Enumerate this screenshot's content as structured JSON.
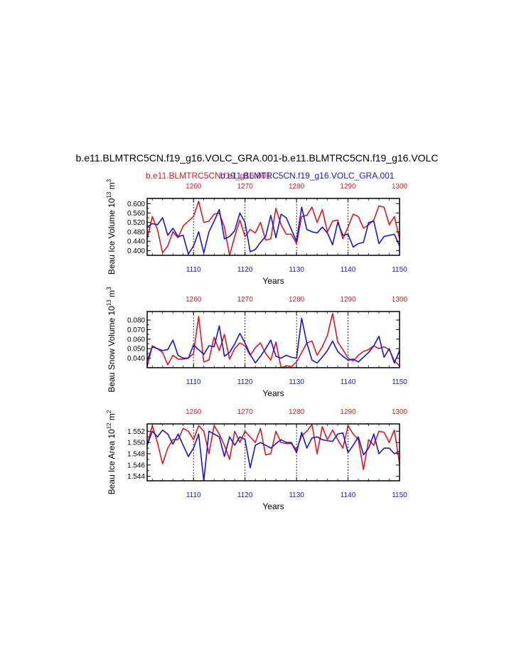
{
  "title": "b.e11.BLMTRC5CN.f19_g16.VOLC_GRA.001-b.e11.BLMTRC5CN.f19_g16.VOLC",
  "subtitle_red": "b.e11.BLMTRC5CN.f19_g16.001",
  "subtitle_blue": "b.e11.BLMTRC5CN.f19_g16.VOLC_GRA.001",
  "colors": {
    "red": "#e8141b",
    "blue": "#1515e0"
  },
  "chart_data": [
    {
      "type": "line",
      "ylabel": "Beau Ice Volume 10",
      "ylabel_exp": "13",
      "ylabel_unit": " m",
      "ylabel_unit_exp": "3",
      "xlabel": "Years",
      "ylim": [
        0.38,
        0.622
      ],
      "yticks": [
        0.4,
        0.44,
        0.48,
        0.52,
        0.56,
        0.6
      ],
      "ytick_labels": [
        "0.400",
        "0.440",
        "0.480",
        "0.520",
        "0.560",
        "0.600"
      ],
      "x_bottom": {
        "range": [
          1101,
          1150
        ],
        "ticks": [
          "1110",
          "1120",
          "1130",
          "1140",
          "1150"
        ]
      },
      "x_top": {
        "range": [
          1251,
          1300
        ],
        "ticks": [
          "1260",
          "1270",
          "1280",
          "1290",
          "1300"
        ]
      },
      "series": [
        {
          "color": "red",
          "axis": "top",
          "start": 1251,
          "values": [
            0.45,
            0.545,
            0.49,
            0.39,
            0.42,
            0.48,
            0.455,
            0.505,
            0.525,
            0.545,
            0.61,
            0.52,
            0.525,
            0.555,
            0.56,
            0.5,
            0.38,
            0.46,
            0.53,
            0.46,
            0.49,
            0.475,
            0.52,
            0.445,
            0.45,
            0.58,
            0.51,
            0.47,
            0.47,
            0.43,
            0.545,
            0.55,
            0.585,
            0.52,
            0.575,
            0.48,
            0.525,
            0.53,
            0.45,
            0.5,
            0.555,
            0.545,
            0.495,
            0.51,
            0.53,
            0.59,
            0.585,
            0.51,
            0.545,
            0.45
          ]
        },
        {
          "color": "blue",
          "axis": "bottom",
          "start": 1101,
          "values": [
            0.5,
            0.515,
            0.51,
            0.54,
            0.465,
            0.495,
            0.46,
            0.465,
            0.385,
            0.42,
            0.48,
            0.39,
            0.48,
            0.525,
            0.575,
            0.45,
            0.46,
            0.485,
            0.56,
            0.52,
            0.395,
            0.405,
            0.435,
            0.46,
            0.55,
            0.455,
            0.555,
            0.54,
            0.49,
            0.44,
            0.585,
            0.49,
            0.48,
            0.475,
            0.5,
            0.475,
            0.425,
            0.52,
            0.465,
            0.47,
            0.415,
            0.43,
            0.435,
            0.52,
            0.525,
            0.43,
            0.46,
            0.465,
            0.47,
            0.42
          ]
        }
      ]
    },
    {
      "type": "line",
      "ylabel": "Beau Snow Volume 10",
      "ylabel_exp": "13",
      "ylabel_unit": " m",
      "ylabel_unit_exp": "3",
      "xlabel": "Years",
      "ylim": [
        0.03,
        0.089
      ],
      "yticks": [
        0.04,
        0.05,
        0.06,
        0.07,
        0.08
      ],
      "ytick_labels": [
        "0.040",
        "0.050",
        "0.060",
        "0.070",
        "0.080"
      ],
      "x_bottom": {
        "range": [
          1101,
          1150
        ],
        "ticks": [
          "1110",
          "1120",
          "1130",
          "1140",
          "1150"
        ]
      },
      "x_top": {
        "range": [
          1251,
          1300
        ],
        "ticks": [
          "1260",
          "1270",
          "1280",
          "1290",
          "1300"
        ]
      },
      "series": [
        {
          "color": "red",
          "axis": "top",
          "start": 1251,
          "values": [
            0.031,
            0.053,
            0.05,
            0.046,
            0.033,
            0.043,
            0.039,
            0.039,
            0.04,
            0.045,
            0.084,
            0.036,
            0.038,
            0.062,
            0.048,
            0.065,
            0.039,
            0.05,
            0.056,
            0.053,
            0.043,
            0.051,
            0.056,
            0.045,
            0.038,
            0.057,
            0.03,
            0.032,
            0.031,
            0.036,
            0.046,
            0.056,
            0.058,
            0.043,
            0.052,
            0.064,
            0.087,
            0.057,
            0.049,
            0.04,
            0.037,
            0.043,
            0.047,
            0.049,
            0.053,
            0.05,
            0.052,
            0.049,
            0.037,
            0.032
          ]
        },
        {
          "color": "blue",
          "axis": "bottom",
          "start": 1101,
          "values": [
            0.037,
            0.052,
            0.05,
            0.048,
            0.049,
            0.059,
            0.043,
            0.04,
            0.04,
            0.054,
            0.049,
            0.044,
            0.053,
            0.052,
            0.074,
            0.042,
            0.046,
            0.055,
            0.066,
            0.056,
            0.044,
            0.035,
            0.042,
            0.05,
            0.059,
            0.042,
            0.04,
            0.043,
            0.041,
            0.04,
            0.082,
            0.056,
            0.038,
            0.035,
            0.041,
            0.048,
            0.058,
            0.047,
            0.042,
            0.038,
            0.039,
            0.036,
            0.041,
            0.046,
            0.053,
            0.063,
            0.041,
            0.05,
            0.035,
            0.048
          ]
        }
      ]
    },
    {
      "type": "line",
      "ylabel": "Beau Ice Area 10",
      "ylabel_exp": "12",
      "ylabel_unit": " m",
      "ylabel_unit_exp": "2",
      "xlabel": "Years",
      "ylim": [
        1.5432,
        1.5533
      ],
      "yticks": [
        1.544,
        1.546,
        1.548,
        1.55,
        1.552
      ],
      "ytick_labels": [
        "1.544",
        "1.546",
        "1.548",
        "1.550",
        "1.552"
      ],
      "x_bottom": {
        "range": [
          1101,
          1150
        ],
        "ticks": [
          "1110",
          "1120",
          "1130",
          "1140",
          "1150"
        ]
      },
      "x_top": {
        "range": [
          1251,
          1300
        ],
        "ticks": [
          "1260",
          "1270",
          "1280",
          "1290",
          "1300"
        ]
      },
      "series": [
        {
          "color": "red",
          "axis": "top",
          "start": 1251,
          "values": [
            1.5495,
            1.553,
            1.55,
            1.5462,
            1.549,
            1.5505,
            1.5505,
            1.5525,
            1.552,
            1.5505,
            1.553,
            1.552,
            1.548,
            1.553,
            1.5515,
            1.5495,
            1.547,
            1.552,
            1.55,
            1.552,
            1.551,
            1.55,
            1.5525,
            1.5478,
            1.548,
            1.552,
            1.55,
            1.5498,
            1.5498,
            1.5487,
            1.5512,
            1.552,
            1.5532,
            1.548,
            1.5528,
            1.5505,
            1.5522,
            1.5505,
            1.549,
            1.553,
            1.5515,
            1.5505,
            1.5452,
            1.5505,
            1.5495,
            1.552,
            1.5518,
            1.55,
            1.5522,
            1.5462
          ]
        },
        {
          "color": "blue",
          "axis": "bottom",
          "start": 1101,
          "values": [
            1.5495,
            1.552,
            1.551,
            1.5522,
            1.5515,
            1.5497,
            1.5515,
            1.5495,
            1.5475,
            1.549,
            1.5515,
            1.5432,
            1.552,
            1.5515,
            1.551,
            1.5475,
            1.551,
            1.5495,
            1.551,
            1.5505,
            1.5455,
            1.5495,
            1.55,
            1.5495,
            1.549,
            1.5498,
            1.5505,
            1.55,
            1.55,
            1.5482,
            1.5518,
            1.549,
            1.5508,
            1.551,
            1.5505,
            1.5503,
            1.5502,
            1.5515,
            1.5517,
            1.5482,
            1.5495,
            1.551,
            1.5478,
            1.549,
            1.5515,
            1.548,
            1.549,
            1.549,
            1.548,
            1.5485
          ]
        }
      ]
    }
  ]
}
